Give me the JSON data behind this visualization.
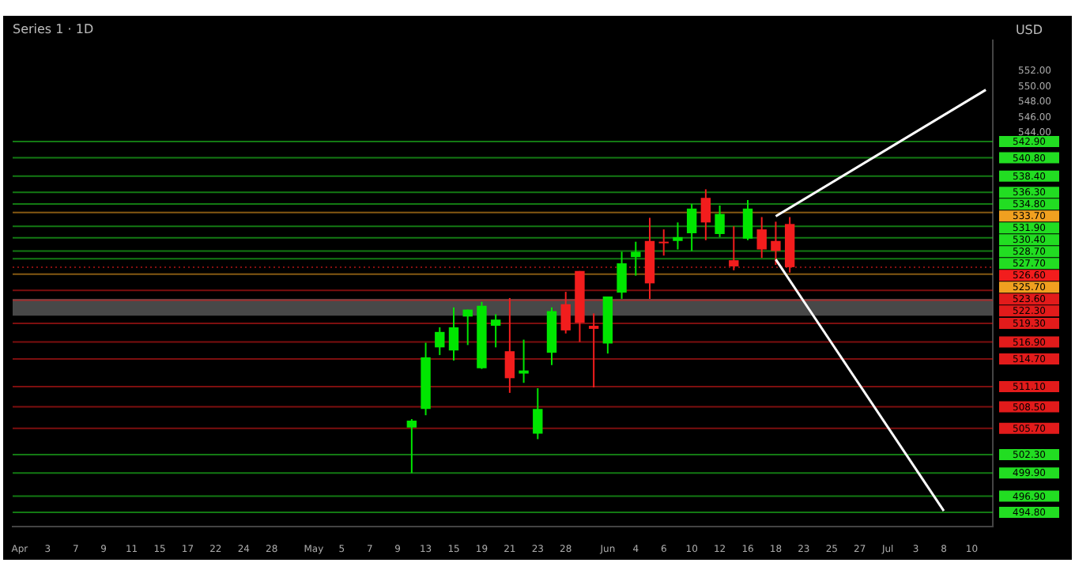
{
  "chart_data": {
    "type": "candlestick",
    "title": "Series 1 · 1D",
    "ylabel": "USD",
    "categories": [
      "Apr",
      null,
      "3",
      null,
      "7",
      null,
      "9",
      null,
      "11",
      null,
      "15",
      null,
      "17",
      null,
      "22",
      null,
      "24",
      null,
      "28",
      null,
      null,
      "May",
      null,
      "5",
      null,
      "7",
      null,
      "9",
      null,
      "13",
      null,
      "15",
      null,
      "19",
      null,
      "21",
      null,
      "23",
      null,
      "28",
      null,
      null,
      "Jun",
      null,
      "4",
      null,
      "6",
      null,
      "10",
      null,
      "12",
      null,
      "16",
      null,
      "18",
      null,
      "23",
      null,
      "25",
      null,
      "27",
      null,
      "Jul",
      null,
      "3",
      null,
      "8",
      null,
      "10",
      null
    ],
    "ohlc": [
      null,
      null,
      null,
      null,
      null,
      null,
      null,
      null,
      null,
      null,
      null,
      null,
      null,
      null,
      null,
      null,
      null,
      null,
      null,
      null,
      null,
      null,
      null,
      null,
      null,
      null,
      null,
      null,
      [
        505.8,
        506.9,
        499.9,
        506.7
      ],
      [
        508.2,
        516.8,
        507.4,
        514.9
      ],
      [
        516.2,
        518.8,
        515.2,
        518.2
      ],
      [
        515.8,
        521.4,
        514.5,
        518.8
      ],
      [
        520.2,
        521.1,
        516.5,
        521.1
      ],
      [
        513.5,
        522.1,
        513.4,
        521.6
      ],
      [
        519.0,
        520.5,
        516.2,
        519.8
      ],
      [
        515.7,
        522.6,
        510.3,
        512.2
      ],
      [
        512.8,
        517.2,
        511.6,
        513.2
      ],
      [
        505.0,
        510.9,
        504.3,
        508.2
      ],
      [
        515.5,
        521.4,
        513.9,
        520.9
      ],
      [
        521.8,
        523.4,
        518.0,
        518.4
      ],
      [
        526.1,
        526.1,
        516.9,
        519.4
      ],
      [
        519.0,
        520.6,
        511.0,
        518.6
      ],
      [
        516.7,
        522.8,
        515.4,
        522.8
      ],
      [
        523.3,
        528.6,
        522.5,
        527.1
      ],
      [
        527.9,
        529.9,
        525.5,
        528.6
      ],
      [
        530.0,
        533.0,
        522.5,
        524.5
      ],
      [
        529.9,
        531.5,
        528.1,
        529.7
      ],
      [
        530.0,
        532.4,
        528.9,
        530.5
      ],
      [
        531.0,
        534.8,
        528.7,
        534.2
      ],
      [
        535.6,
        536.7,
        530.1,
        532.4
      ],
      [
        530.9,
        534.6,
        530.5,
        533.5
      ],
      [
        527.5,
        531.9,
        526.2,
        526.7
      ],
      [
        530.3,
        535.3,
        530.1,
        534.2
      ],
      [
        531.5,
        533.1,
        527.8,
        528.9
      ],
      [
        530.0,
        532.5,
        526.9,
        528.7
      ],
      [
        532.2,
        533.1,
        525.9,
        526.6
      ],
      null,
      null,
      null,
      null,
      null,
      null,
      null,
      null,
      null,
      null,
      null,
      null,
      null,
      null
    ],
    "colors": [
      null,
      null,
      null,
      null,
      null,
      null,
      null,
      null,
      null,
      null,
      null,
      null,
      null,
      null,
      null,
      null,
      null,
      null,
      null,
      null,
      null,
      null,
      null,
      null,
      null,
      null,
      null,
      null,
      "#00e600",
      "#00e600",
      "#00e600",
      "#00e600",
      "#00e600",
      "#00e600",
      "#00e600",
      "#f21d1d",
      "#00e600",
      "#00e600",
      "#00e600",
      "#f21d1d",
      "#f21d1d",
      "#f21d1d",
      "#00e600",
      "#00e600",
      "#00e600",
      "#f21d1d",
      "#f21d1d",
      "#00e600",
      "#00e600",
      "#f21d1d",
      "#00e600",
      "#f21d1d",
      "#00e600",
      "#f21d1d",
      "#f21d1d",
      "#f21d1d",
      null,
      null,
      null,
      null,
      null,
      null,
      null,
      null,
      null,
      null,
      null,
      null,
      null,
      null
    ],
    "series": [
      {
        "type": "line",
        "color": "#ffffff",
        "values": [
          null,
          null,
          null,
          null,
          null,
          null,
          null,
          null,
          null,
          null,
          null,
          null,
          null,
          null,
          null,
          null,
          null,
          null,
          null,
          null,
          null,
          null,
          null,
          null,
          null,
          null,
          null,
          null,
          null,
          null,
          null,
          null,
          null,
          null,
          null,
          null,
          null,
          null,
          null,
          null,
          null,
          null,
          null,
          null,
          null,
          null,
          null,
          null,
          null,
          null,
          null,
          null,
          null,
          null,
          533.2,
          null,
          null,
          null,
          null,
          null,
          null,
          null,
          null,
          null,
          null,
          null,
          null,
          null,
          null,
          549.6
        ]
      },
      {
        "type": "line",
        "color": "#ffffff",
        "values": [
          null,
          null,
          null,
          null,
          null,
          null,
          null,
          null,
          null,
          null,
          null,
          null,
          null,
          null,
          null,
          null,
          null,
          null,
          null,
          null,
          null,
          null,
          null,
          null,
          null,
          null,
          null,
          null,
          null,
          null,
          null,
          null,
          null,
          null,
          null,
          null,
          null,
          null,
          null,
          null,
          null,
          null,
          null,
          null,
          null,
          null,
          null,
          null,
          null,
          null,
          null,
          null,
          null,
          null,
          527.6,
          null,
          null,
          null,
          null,
          null,
          null,
          null,
          null,
          null,
          null,
          null,
          495.0,
          null,
          null,
          null
        ]
      }
    ],
    "ylim": [
      493,
      556
    ],
    "yticks": [
      {
        "value": 544,
        "label": "544.00"
      },
      {
        "value": 546,
        "label": "546.00"
      },
      {
        "value": 548,
        "label": "548.00"
      },
      {
        "value": 550,
        "label": "550.00"
      },
      {
        "value": 552,
        "label": "552.00"
      }
    ],
    "grid": false,
    "legend": false,
    "ref_lines": [
      {
        "axis": "y",
        "value": 542.9,
        "label": "542.90",
        "color": "#22dd22"
      },
      {
        "axis": "y",
        "value": 540.8,
        "label": "540.80",
        "color": "#22dd22"
      },
      {
        "axis": "y",
        "value": 538.4,
        "label": "538.40",
        "color": "#22dd22"
      },
      {
        "axis": "y",
        "value": 536.3,
        "label": "536.30",
        "color": "#22dd22"
      },
      {
        "axis": "y",
        "value": 534.8,
        "label": "534.80",
        "color": "#22dd22"
      },
      {
        "axis": "y",
        "value": 533.7,
        "label": "533.70",
        "color": "#f0a020"
      },
      {
        "axis": "y",
        "value": 531.9,
        "label": "531.90",
        "color": "#22dd22"
      },
      {
        "axis": "y",
        "value": 530.4,
        "label": "530.40",
        "color": "#22dd22"
      },
      {
        "axis": "y",
        "value": 528.7,
        "label": "528.70",
        "color": "#22dd22"
      },
      {
        "axis": "y",
        "value": 527.7,
        "label": "527.70",
        "color": "#22dd22"
      },
      {
        "axis": "y",
        "value": 526.6,
        "label": "526.60",
        "color": "#f21d1d",
        "line_style": "dotted"
      },
      {
        "axis": "y",
        "value": 525.7,
        "label": "525.70",
        "color": "#f0a020"
      },
      {
        "axis": "y",
        "value": 523.6,
        "label": "523.60",
        "color": "#e21b1b"
      },
      {
        "axis": "y",
        "value": 522.3,
        "label": "522.30",
        "color": "#e21b1b"
      },
      {
        "axis": "y",
        "value": 519.3,
        "label": "519.30",
        "color": "#e21b1b"
      },
      {
        "axis": "y",
        "value": 516.9,
        "label": "516.90",
        "color": "#e21b1b"
      },
      {
        "axis": "y",
        "value": 514.7,
        "label": "514.70",
        "color": "#e21b1b"
      },
      {
        "axis": "y",
        "value": 511.1,
        "label": "511.10",
        "color": "#e21b1b"
      },
      {
        "axis": "y",
        "value": 508.5,
        "label": "508.50",
        "color": "#e21b1b"
      },
      {
        "axis": "y",
        "value": 505.7,
        "label": "505.70",
        "color": "#e21b1b"
      },
      {
        "axis": "y",
        "value": 502.3,
        "label": "502.30",
        "color": "#22dd22"
      },
      {
        "axis": "y",
        "value": 499.9,
        "label": "499.90",
        "color": "#22dd22"
      },
      {
        "axis": "y",
        "value": 496.9,
        "label": "496.90",
        "color": "#22dd22"
      },
      {
        "axis": "y",
        "value": 494.8,
        "label": "494.80",
        "color": "#22dd22"
      }
    ],
    "bands": [
      {
        "axis": "y",
        "from": 520.3,
        "to": 522.5,
        "color": "#5a5a5a"
      }
    ]
  }
}
